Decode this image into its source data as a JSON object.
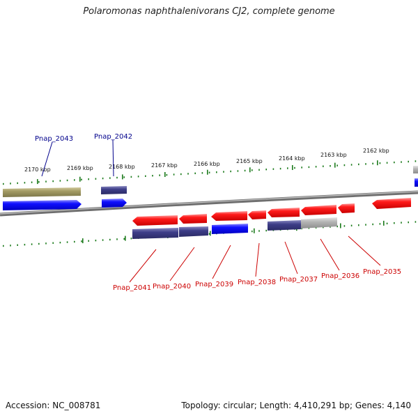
{
  "title": "Polaromonas naphthalenivorans CJ2, complete genome",
  "footer": {
    "accession": "Accession: NC_008781",
    "summary": "Topology: circular; Length: 4,410,291 bp; Genes: 4,140"
  },
  "colors": {
    "background": "#ffffff",
    "backbone": "#7a7a7a",
    "tick": "#1a7a1a",
    "forward_label": "#00008b",
    "reverse_label": "#cc0000"
  },
  "ruler": {
    "unit": "kbp",
    "ticks": [
      "2170 kbp",
      "2169 kbp",
      "2168 kbp",
      "2167 kbp",
      "2166 kbp",
      "2165 kbp",
      "2164 kbp",
      "2163 kbp",
      "2162 kbp"
    ]
  },
  "forward_labels": [
    "Pnap_2043",
    "Pnap_2042"
  ],
  "reverse_labels": [
    "Pnap_2041",
    "Pnap_2040",
    "Pnap_2039",
    "Pnap_2038",
    "Pnap_2037",
    "Pnap_2036",
    "Pnap_2035"
  ]
}
